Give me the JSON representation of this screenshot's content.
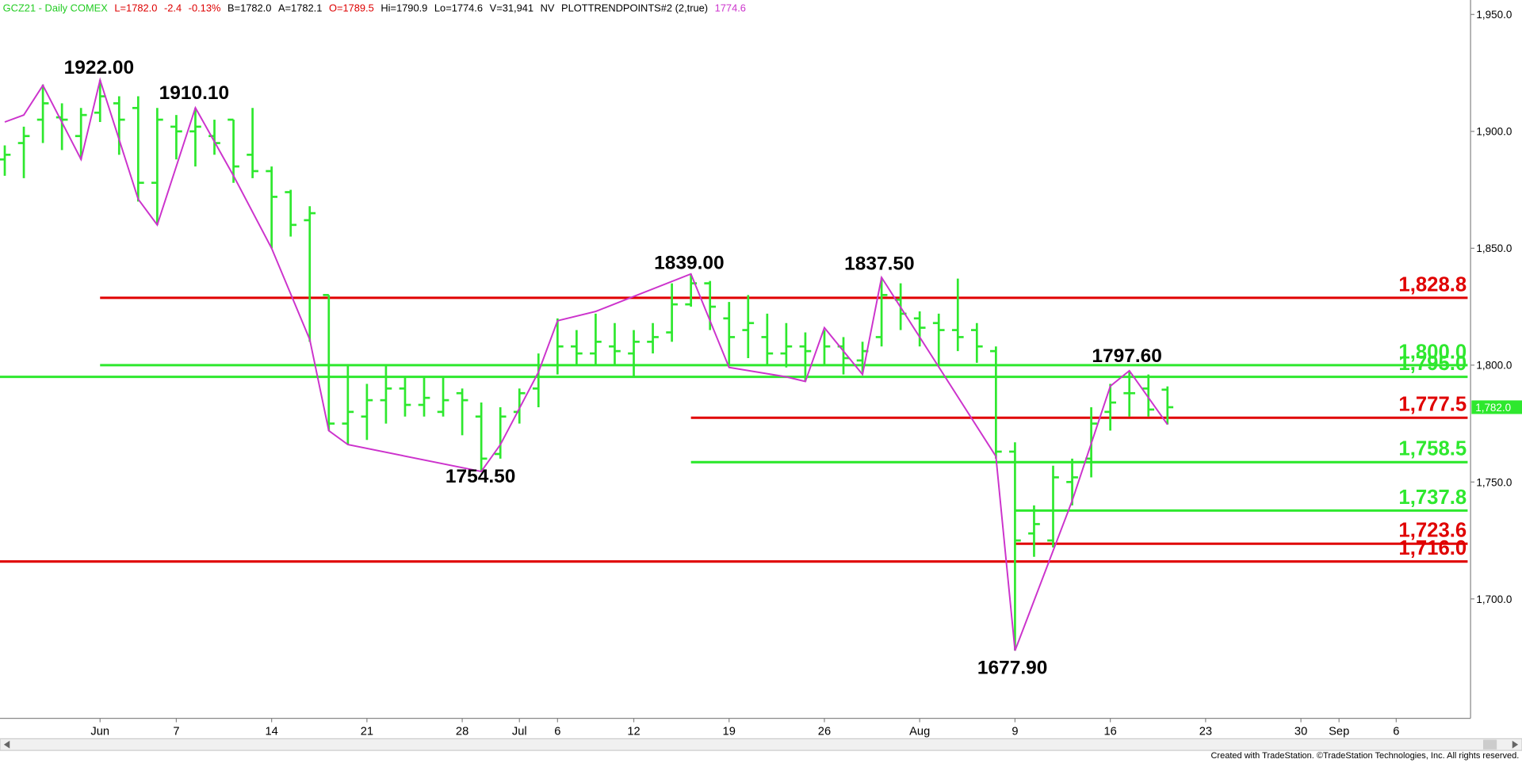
{
  "header": [
    {
      "text": "GCZ21 - Daily  COMEX",
      "color": "#22cc22"
    },
    {
      "text": "L=1782.0",
      "color": "#dd0000"
    },
    {
      "text": "-2.4",
      "color": "#dd0000"
    },
    {
      "text": "-0.13%",
      "color": "#dd0000"
    },
    {
      "text": "B=1782.0",
      "color": "#000000"
    },
    {
      "text": "A=1782.1",
      "color": "#000000"
    },
    {
      "text": "O=1789.5",
      "color": "#dd0000"
    },
    {
      "text": "Hi=1790.9",
      "color": "#000000"
    },
    {
      "text": "Lo=1774.6",
      "color": "#000000"
    },
    {
      "text": "V=31,941",
      "color": "#000000"
    },
    {
      "text": "NV",
      "color": "#000000"
    },
    {
      "text": "PLOTTRENDPOINTS#2 (2,true)",
      "color": "#000000"
    },
    {
      "text": "1774.6",
      "color": "#cc33cc"
    }
  ],
  "footer": "Created with TradeStation. ©TradeStation Technologies, Inc. All rights reserved.",
  "chart_data": {
    "type": "ohlc",
    "color": "#2ee82e",
    "categories": [
      null,
      null,
      null,
      null,
      null,
      "Jun",
      null,
      null,
      null,
      "7",
      null,
      null,
      null,
      null,
      "14",
      null,
      null,
      null,
      null,
      "21",
      null,
      null,
      null,
      null,
      "28",
      null,
      null,
      "Jul",
      null,
      "6",
      null,
      null,
      null,
      "12",
      null,
      null,
      null,
      null,
      "19",
      null,
      null,
      null,
      null,
      "26",
      null,
      null,
      null,
      null,
      "Aug",
      null,
      null,
      null,
      null,
      "9",
      null,
      null,
      null,
      null,
      "16",
      null,
      null,
      null,
      null,
      "23",
      null,
      null,
      null,
      null,
      "30",
      null,
      "Sep",
      null,
      null,
      "6",
      null,
      null,
      null
    ],
    "open": [
      1888,
      1895,
      1905,
      1906,
      1898,
      1908,
      1912,
      1910,
      1878,
      1902,
      1900,
      1898,
      1905,
      1890,
      1883,
      1874,
      1862,
      1830,
      1775,
      1778,
      1785,
      1790,
      1783,
      1780,
      1788,
      1778,
      1762,
      1780,
      1790,
      1800,
      1808,
      1805,
      1808,
      1805,
      1810,
      1814,
      1826,
      1835,
      1820,
      1815,
      1812,
      1805,
      1808,
      1800,
      1808,
      1802,
      1812,
      1828,
      1820,
      1818,
      1815,
      1815,
      1806,
      1763,
      1728,
      1725,
      1750,
      1760,
      1780,
      1788,
      1790,
      1789.5,
      null,
      null,
      null,
      null,
      null,
      null,
      null,
      null,
      null,
      null,
      null,
      null,
      null,
      null,
      null
    ],
    "high": [
      1894,
      1902,
      1920,
      1912,
      1910,
      1922,
      1915,
      1915,
      1910,
      1907,
      1910,
      1905,
      1905,
      1910,
      1885,
      1875,
      1868,
      1830,
      1800,
      1792,
      1800,
      1795,
      1795,
      1795,
      1790,
      1784,
      1782,
      1790,
      1805,
      1820,
      1815,
      1822,
      1818,
      1815,
      1818,
      1835,
      1839,
      1836,
      1827,
      1830,
      1822,
      1818,
      1814,
      1815,
      1812,
      1810,
      1837.5,
      1835,
      1823,
      1822,
      1837,
      1818,
      1808,
      1767,
      1740,
      1757,
      1760,
      1782,
      1792,
      1797.6,
      1796,
      1790.9,
      null,
      null,
      null,
      null,
      null,
      null,
      null,
      null,
      null,
      null,
      null,
      null,
      null,
      null,
      null
    ],
    "low": [
      1881,
      1880,
      1895,
      1892,
      1888,
      1904,
      1890,
      1870,
      1860,
      1888,
      1885,
      1890,
      1878,
      1880,
      1850,
      1855,
      1810,
      1772,
      1766,
      1768,
      1775,
      1778,
      1778,
      1778,
      1770,
      1754.5,
      1760,
      1775,
      1782,
      1796,
      1800,
      1800,
      1800,
      1795,
      1805,
      1810,
      1825,
      1815,
      1800,
      1803,
      1800,
      1799,
      1793,
      1800,
      1796,
      1797,
      1808,
      1815,
      1808,
      1800,
      1806,
      1801,
      1760,
      1677.9,
      1718,
      1722,
      1740,
      1752,
      1772,
      1778,
      1778,
      1774.6,
      null,
      null,
      null,
      null,
      null,
      null,
      null,
      null,
      null,
      null,
      null,
      null,
      null,
      null,
      null
    ],
    "close": [
      1890,
      1898,
      1912,
      1905,
      1907,
      1915,
      1905,
      1878,
      1905,
      1900,
      1902,
      1895,
      1885,
      1883,
      1872,
      1860,
      1865,
      1775,
      1780,
      1785,
      1790,
      1783,
      1786,
      1785,
      1785,
      1760,
      1778,
      1788,
      1800,
      1808,
      1805,
      1810,
      1806,
      1810,
      1812,
      1826,
      1835,
      1825,
      1812,
      1818,
      1805,
      1808,
      1806,
      1808,
      1803,
      1806,
      1830,
      1822,
      1816,
      1815,
      1812,
      1808,
      1763,
      1725,
      1732,
      1752,
      1752,
      1775,
      1784,
      1788,
      1781,
      1782,
      null,
      null,
      null,
      null,
      null,
      null,
      null,
      null,
      null,
      null,
      null,
      null,
      null,
      null,
      null
    ],
    "trend": {
      "color": "#cc33cc",
      "x": [
        0,
        1,
        2,
        4,
        5,
        7,
        8,
        10,
        12,
        14,
        16,
        17,
        18,
        25,
        26,
        28,
        29,
        31,
        36,
        38,
        41,
        42,
        43,
        45,
        46,
        52,
        53,
        56,
        58,
        59,
        61
      ],
      "values": [
        1904,
        1907,
        1919.7,
        1888,
        1922,
        1871,
        1860,
        1910.1,
        1881,
        1850,
        1811,
        1772,
        1766,
        1754.5,
        1766,
        1797,
        1819,
        1823,
        1839,
        1799,
        1795,
        1793,
        1816,
        1796,
        1837.5,
        1761,
        1677.9,
        1742,
        1791,
        1797.6,
        1774.6
      ]
    },
    "annotations": [
      "1922.00",
      "1910.10",
      "1754.50",
      "1839.00",
      "1837.50",
      "1797.60",
      "1677.90"
    ],
    "levels": [
      {
        "value": 1828.8,
        "label": "1,828.8",
        "color": "#e00000",
        "from": 5
      },
      {
        "value": 1800.0,
        "label": "1,800.0",
        "color": "#2ee82e",
        "from": 5
      },
      {
        "value": 1795.0,
        "label": "1,795.0",
        "color": "#2ee82e",
        "from": 0
      },
      {
        "value": 1777.5,
        "label": "1,777.5",
        "color": "#e00000",
        "from": 36
      },
      {
        "value": 1758.5,
        "label": "1,758.5",
        "color": "#2ee82e",
        "from": 36
      },
      {
        "value": 1737.8,
        "label": "1,737.8",
        "color": "#2ee82e",
        "from": 53
      },
      {
        "value": 1723.6,
        "label": "1,723.6",
        "color": "#e00000",
        "from": 53
      },
      {
        "value": 1716.0,
        "label": "1,716.0",
        "color": "#e00000",
        "from": 0
      }
    ],
    "last_price": {
      "value": 1782.0,
      "label": "1,782.0",
      "color": "#2ee82e"
    },
    "xlim": [
      -0.25,
      76.9
    ],
    "ylim": [
      1648.9,
      1956.2
    ],
    "yticks": [
      {
        "value": 1700,
        "label": "1,700.0"
      },
      {
        "value": 1750,
        "label": "1,750.0"
      },
      {
        "value": 1800,
        "label": "1,800.0"
      },
      {
        "value": 1850,
        "label": "1,850.0"
      },
      {
        "value": 1900,
        "label": "1,900.0"
      },
      {
        "value": 1950,
        "label": "1,950.0"
      }
    ]
  }
}
